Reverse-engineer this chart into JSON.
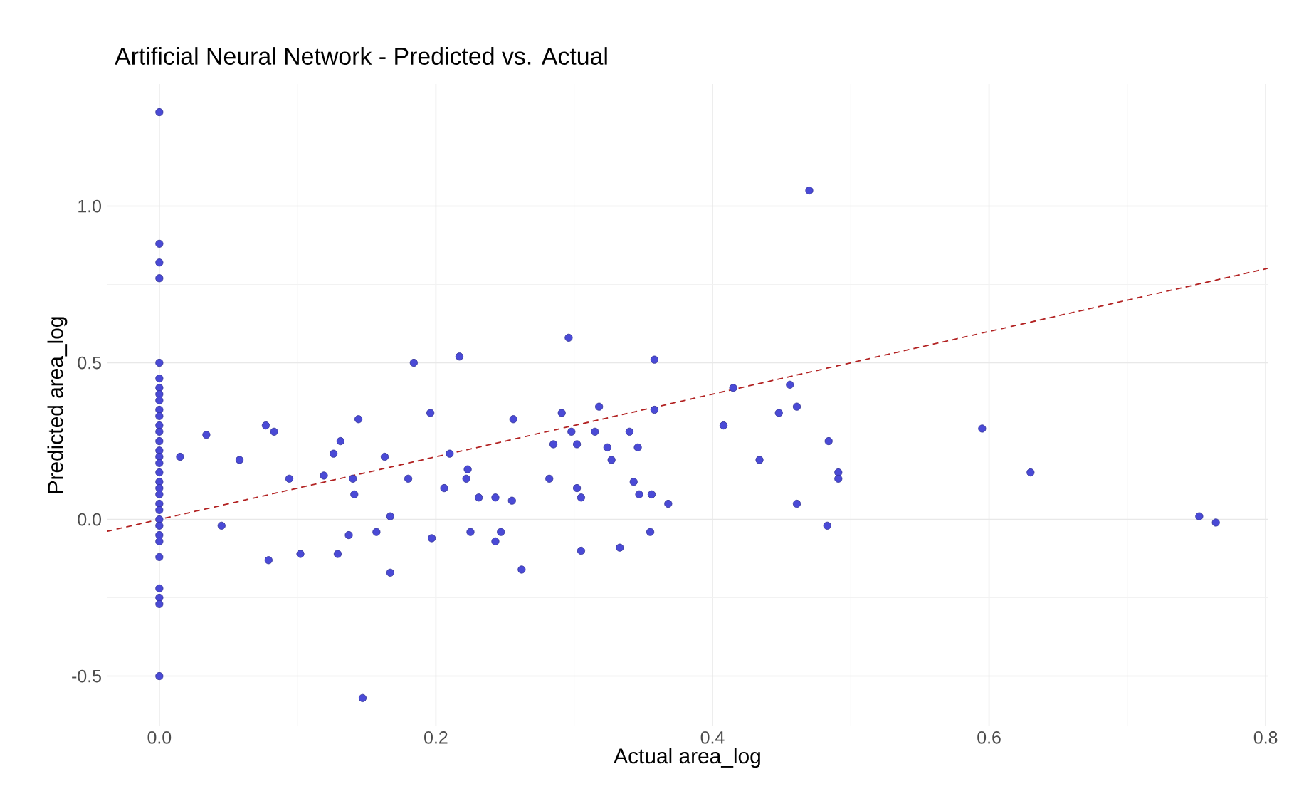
{
  "chart_data": {
    "type": "scatter",
    "title": "Artificial Neural Network - Predicted vs. Actual",
    "xlabel": "Actual area_log",
    "ylabel": "Predicted area_log",
    "xlim": [
      -0.038,
      0.802
    ],
    "ylim": [
      -0.66,
      1.39
    ],
    "xticks": [
      {
        "value": 0,
        "label": "0.0"
      },
      {
        "value": 0.2,
        "label": "0.2"
      },
      {
        "value": 0.4,
        "label": "0.4"
      },
      {
        "value": 0.6,
        "label": "0.6"
      },
      {
        "value": 0.8,
        "label": "0.8"
      }
    ],
    "yticks": [
      {
        "value": -0.5,
        "label": "-0.5"
      },
      {
        "value": 0,
        "label": "0.0"
      },
      {
        "value": 0.5,
        "label": "0.5"
      },
      {
        "value": 1,
        "label": "1.0"
      }
    ],
    "grid": true,
    "marker": "circle",
    "series": [
      {
        "color": "#4a4ad6",
        "x": [
          0,
          0,
          0,
          0,
          0,
          0,
          0,
          0,
          0,
          0,
          0,
          0,
          0,
          0,
          0,
          0,
          0,
          0,
          0,
          0,
          0,
          0,
          0,
          0,
          0,
          0,
          0,
          0,
          0,
          0,
          0,
          0,
          0.015,
          0.034,
          0.045,
          0.058,
          0.077,
          0.083,
          0.079,
          0.094,
          0.102,
          0.119,
          0.126,
          0.131,
          0.129,
          0.137,
          0.14,
          0.141,
          0.144,
          0.147,
          0.157,
          0.163,
          0.167,
          0.167,
          0.18,
          0.196,
          0.197,
          0.206,
          0.21,
          0.222,
          0.223,
          0.225,
          0.231,
          0.243,
          0.243,
          0.247,
          0.255,
          0.256,
          0.262,
          0.184,
          0.217,
          0.296,
          0.358,
          0.47,
          0.415,
          0.456,
          0.461,
          0.448,
          0.408,
          0.484,
          0.434,
          0.491,
          0.491,
          0.461,
          0.291,
          0.318,
          0.358,
          0.298,
          0.285,
          0.302,
          0.315,
          0.34,
          0.324,
          0.346,
          0.327,
          0.282,
          0.302,
          0.305,
          0.343,
          0.347,
          0.356,
          0.368,
          0.355,
          0.305,
          0.333,
          0.483,
          0.595,
          0.63,
          0.752,
          0.764
        ],
        "values": [
          1.3,
          0.88,
          0.82,
          0.77,
          0.5,
          0.45,
          0.42,
          0.4,
          0.38,
          0.35,
          0.33,
          0.3,
          0.28,
          0.25,
          0.22,
          0.2,
          0.18,
          0.15,
          0.12,
          0.1,
          0.08,
          0.05,
          0.03,
          0,
          -0.02,
          -0.05,
          -0.07,
          -0.12,
          -0.22,
          -0.25,
          -0.27,
          -0.5,
          0.2,
          0.27,
          -0.02,
          0.19,
          0.3,
          0.28,
          -0.13,
          0.13,
          -0.11,
          0.14,
          0.21,
          0.25,
          -0.11,
          -0.05,
          0.13,
          0.08,
          0.32,
          -0.57,
          -0.04,
          0.2,
          0.01,
          -0.17,
          0.13,
          0.34,
          -0.06,
          0.1,
          0.21,
          0.13,
          0.16,
          -0.04,
          0.07,
          0.07,
          -0.07,
          -0.04,
          0.06,
          0.32,
          -0.16,
          0.5,
          0.52,
          0.58,
          0.51,
          1.05,
          0.42,
          0.43,
          0.36,
          0.34,
          0.3,
          0.25,
          0.19,
          0.15,
          0.13,
          0.05,
          0.34,
          0.36,
          0.35,
          0.28,
          0.24,
          0.24,
          0.28,
          0.28,
          0.23,
          0.23,
          0.19,
          0.13,
          0.1,
          0.07,
          0.12,
          0.08,
          0.08,
          0.05,
          -0.04,
          -0.1,
          -0.09,
          -0.02,
          0.29,
          0.15,
          0.01,
          -0.01
        ]
      },
      {
        "type": "line",
        "color": "#b22222",
        "line_style": "dashed",
        "marker": "none",
        "x": [
          -0.038,
          0.802
        ],
        "values": [
          -0.038,
          0.802
        ]
      }
    ]
  }
}
